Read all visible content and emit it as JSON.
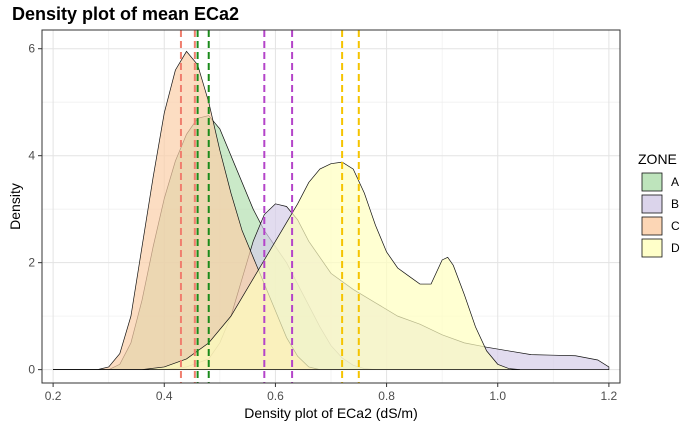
{
  "chart_data": {
    "type": "area",
    "title": "Density plot of mean ECa2",
    "xlabel": "Density plot of ECa2 (dS/m)",
    "ylabel": "Density",
    "xlim": [
      0.18,
      1.22
    ],
    "ylim": [
      -0.25,
      6.35
    ],
    "x_ticks": [
      0.2,
      0.4,
      0.6,
      0.8,
      1.0,
      1.2
    ],
    "x_tick_labels": [
      "0.2",
      "0.4",
      "0.6",
      "0.8",
      "1.0",
      "1.2"
    ],
    "y_ticks": [
      0,
      2,
      4,
      6
    ],
    "y_tick_labels": [
      "0",
      "2",
      "4",
      "6"
    ],
    "grid": true,
    "legend": {
      "title": "ZONE",
      "placement": "right"
    },
    "series": [
      {
        "name": "A",
        "fill": "#b3dfb0",
        "points": [
          [
            0.2,
            0
          ],
          [
            0.3,
            0
          ],
          [
            0.32,
            0.1
          ],
          [
            0.34,
            0.5
          ],
          [
            0.36,
            1.3
          ],
          [
            0.38,
            2.3
          ],
          [
            0.4,
            3.2
          ],
          [
            0.42,
            3.9
          ],
          [
            0.44,
            4.4
          ],
          [
            0.46,
            4.7
          ],
          [
            0.48,
            4.75
          ],
          [
            0.5,
            4.5
          ],
          [
            0.52,
            4.0
          ],
          [
            0.54,
            3.5
          ],
          [
            0.56,
            3.0
          ],
          [
            0.58,
            2.6
          ],
          [
            0.6,
            2.3
          ],
          [
            0.62,
            2.0
          ],
          [
            0.64,
            1.6
          ],
          [
            0.66,
            1.2
          ],
          [
            0.68,
            0.8
          ],
          [
            0.7,
            0.45
          ],
          [
            0.72,
            0.22
          ],
          [
            0.74,
            0.08
          ],
          [
            0.76,
            0.02
          ],
          [
            0.78,
            0
          ]
        ]
      },
      {
        "name": "B",
        "fill": "#d5cde8",
        "points": [
          [
            0.2,
            0
          ],
          [
            0.4,
            0
          ],
          [
            0.44,
            0.05
          ],
          [
            0.48,
            0.2
          ],
          [
            0.5,
            0.5
          ],
          [
            0.52,
            1.0
          ],
          [
            0.54,
            1.7
          ],
          [
            0.56,
            2.4
          ],
          [
            0.58,
            2.9
          ],
          [
            0.6,
            3.1
          ],
          [
            0.62,
            3.05
          ],
          [
            0.64,
            2.8
          ],
          [
            0.66,
            2.4
          ],
          [
            0.7,
            1.8
          ],
          [
            0.74,
            1.5
          ],
          [
            0.78,
            1.25
          ],
          [
            0.82,
            1.0
          ],
          [
            0.86,
            0.85
          ],
          [
            0.9,
            0.65
          ],
          [
            0.94,
            0.5
          ],
          [
            0.98,
            0.42
          ],
          [
            1.02,
            0.35
          ],
          [
            1.06,
            0.28
          ],
          [
            1.1,
            0.27
          ],
          [
            1.14,
            0.26
          ],
          [
            1.18,
            0.18
          ],
          [
            1.2,
            0.05
          ]
        ]
      },
      {
        "name": "C",
        "fill": "#fbcfa8",
        "points": [
          [
            0.2,
            0
          ],
          [
            0.28,
            0
          ],
          [
            0.3,
            0.05
          ],
          [
            0.32,
            0.3
          ],
          [
            0.34,
            1.0
          ],
          [
            0.36,
            2.3
          ],
          [
            0.38,
            3.6
          ],
          [
            0.4,
            4.8
          ],
          [
            0.42,
            5.6
          ],
          [
            0.44,
            5.95
          ],
          [
            0.46,
            5.7
          ],
          [
            0.48,
            5.0
          ],
          [
            0.5,
            4.1
          ],
          [
            0.52,
            3.3
          ],
          [
            0.54,
            2.6
          ],
          [
            0.56,
            2.1
          ],
          [
            0.58,
            1.6
          ],
          [
            0.6,
            1.1
          ],
          [
            0.62,
            0.6
          ],
          [
            0.64,
            0.25
          ],
          [
            0.66,
            0.05
          ],
          [
            0.68,
            0
          ]
        ]
      },
      {
        "name": "D",
        "fill": "#ffffbf",
        "points": [
          [
            0.2,
            0
          ],
          [
            0.36,
            0
          ],
          [
            0.4,
            0.05
          ],
          [
            0.44,
            0.2
          ],
          [
            0.48,
            0.5
          ],
          [
            0.52,
            1.0
          ],
          [
            0.56,
            1.7
          ],
          [
            0.6,
            2.4
          ],
          [
            0.64,
            3.1
          ],
          [
            0.66,
            3.5
          ],
          [
            0.68,
            3.75
          ],
          [
            0.7,
            3.85
          ],
          [
            0.72,
            3.88
          ],
          [
            0.74,
            3.75
          ],
          [
            0.76,
            3.3
          ],
          [
            0.78,
            2.7
          ],
          [
            0.8,
            2.2
          ],
          [
            0.82,
            1.9
          ],
          [
            0.84,
            1.75
          ],
          [
            0.86,
            1.6
          ],
          [
            0.88,
            1.6
          ],
          [
            0.9,
            2.05
          ],
          [
            0.91,
            2.1
          ],
          [
            0.92,
            1.95
          ],
          [
            0.94,
            1.4
          ],
          [
            0.96,
            0.8
          ],
          [
            0.98,
            0.35
          ],
          [
            1.0,
            0.1
          ],
          [
            1.02,
            0.02
          ],
          [
            1.04,
            0
          ]
        ]
      }
    ],
    "vlines": [
      {
        "x": 0.43,
        "color": "#f07e6e"
      },
      {
        "x": 0.455,
        "color": "#f07e6e"
      },
      {
        "x": 0.46,
        "color": "#1a8a1a"
      },
      {
        "x": 0.48,
        "color": "#1a8a1a"
      },
      {
        "x": 0.58,
        "color": "#b444c9"
      },
      {
        "x": 0.63,
        "color": "#b444c9"
      },
      {
        "x": 0.72,
        "color": "#f5c400"
      },
      {
        "x": 0.75,
        "color": "#f5c400"
      }
    ]
  }
}
